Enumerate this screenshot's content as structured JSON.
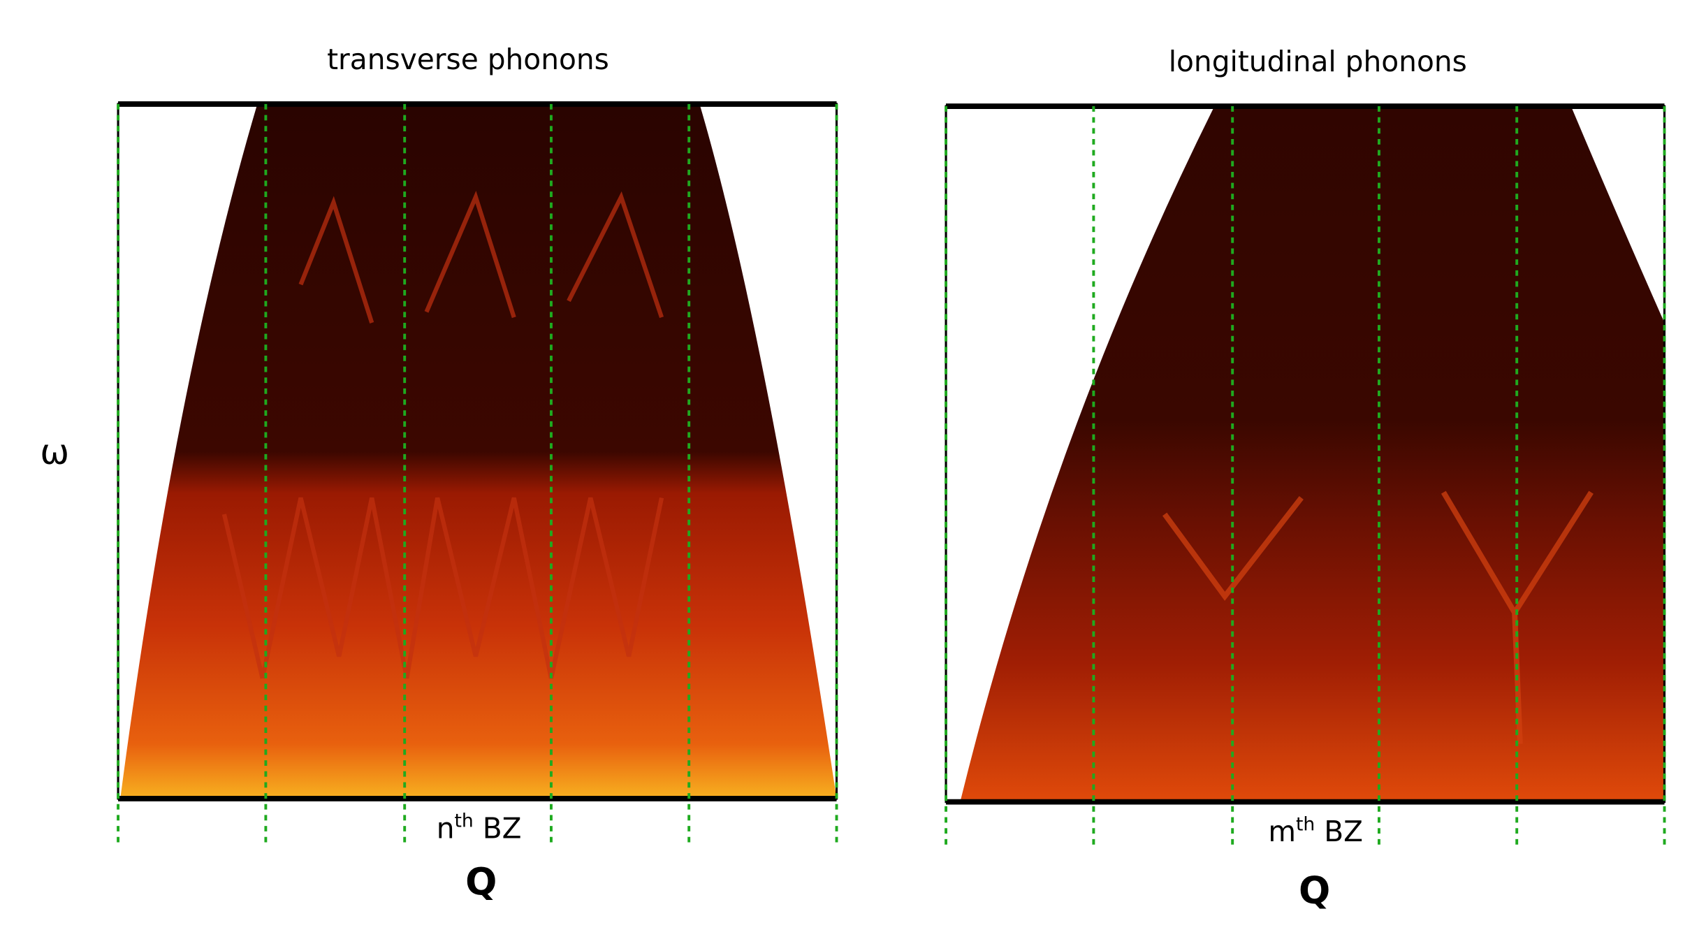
{
  "panels": [
    {
      "title": "transverse phonons",
      "y_label": "ω",
      "zone_label": {
        "base": "n",
        "sup": "th",
        "rest": " BZ"
      },
      "x_label": "Q"
    },
    {
      "title": "longitudinal phonons",
      "zone_label": {
        "base": "m",
        "sup": "th",
        "rest": " BZ"
      },
      "x_label": "Q"
    }
  ]
}
